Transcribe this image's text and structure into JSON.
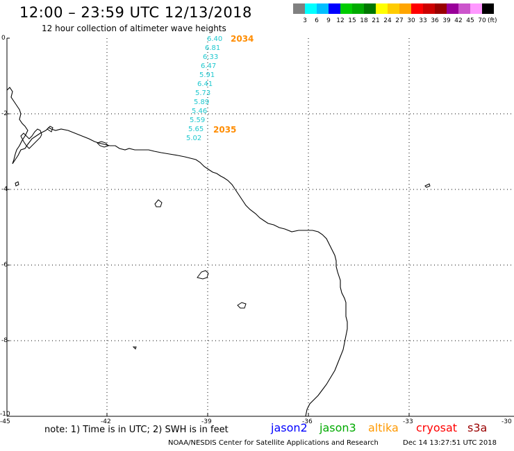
{
  "header": {
    "title": "12:00 – 23:59 UTC 12/13/2018",
    "subtitle": "12 hour collection of altimeter wave heights"
  },
  "scale": {
    "colors": [
      "#808080",
      "#00ffff",
      "#00bfff",
      "#0000ff",
      "#00cc00",
      "#00aa00",
      "#007700",
      "#ffff00",
      "#ffcc00",
      "#ffa500",
      "#ff0000",
      "#cc0000",
      "#990000",
      "#990099",
      "#cc55cc",
      "#ff99ff",
      "#000000"
    ],
    "labels": [
      "3",
      "6",
      "9",
      "12",
      "15",
      "18",
      "21",
      "24",
      "27",
      "30",
      "33",
      "36",
      "39",
      "42",
      "45",
      "70"
    ],
    "unit": "(ft)"
  },
  "axes": {
    "x_ticks": [
      "-45",
      "-42",
      "-39",
      "-36",
      "-33",
      "-30"
    ],
    "y_ticks": [
      "0",
      "-2",
      "-4",
      "-6",
      "-8",
      "-10"
    ]
  },
  "track": {
    "values": [
      "6.40",
      "6.81",
      "6.33",
      "6.47",
      "5.91",
      "6.41",
      "5.73",
      "5.89",
      "5.46",
      "5.59",
      "5.65",
      "5.02"
    ],
    "times": [
      "2034",
      "2035"
    ]
  },
  "footer": {
    "note": "note:  1) Time is in UTC;  2) SWH is in feet",
    "satellites": [
      {
        "name": "jason2",
        "color": "#0000ff"
      },
      {
        "name": "jason3",
        "color": "#00aa00"
      },
      {
        "name": "altika",
        "color": "#ff9900"
      },
      {
        "name": "cryosat",
        "color": "#ff0000"
      },
      {
        "name": "s3a",
        "color": "#990000"
      }
    ],
    "credit": "NOAA/NESDIS Center for Satellite Applications and Research",
    "timestamp": "Dec 14 13:27:51 UTC 2018"
  }
}
